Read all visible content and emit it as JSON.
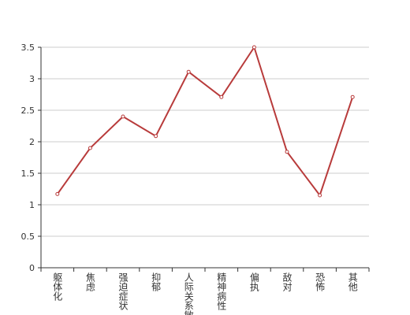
{
  "chart_data": {
    "type": "line",
    "categories": [
      "躯体化",
      "焦虑",
      "强迫症状",
      "抑郁",
      "人际关系敏",
      "精神病性",
      "偏执",
      "敌对",
      "恐怖",
      "其他"
    ],
    "series": [
      {
        "color": "#b83b3b",
        "values": [
          1.17,
          1.9,
          2.4,
          2.09,
          3.11,
          2.71,
          3.5,
          1.84,
          1.15,
          2.71
        ]
      }
    ],
    "ylim": [
      0,
      3.5
    ],
    "yticks": [
      0,
      0.5,
      1,
      1.5,
      2,
      2.5,
      3,
      3.5
    ],
    "grid": true
  }
}
